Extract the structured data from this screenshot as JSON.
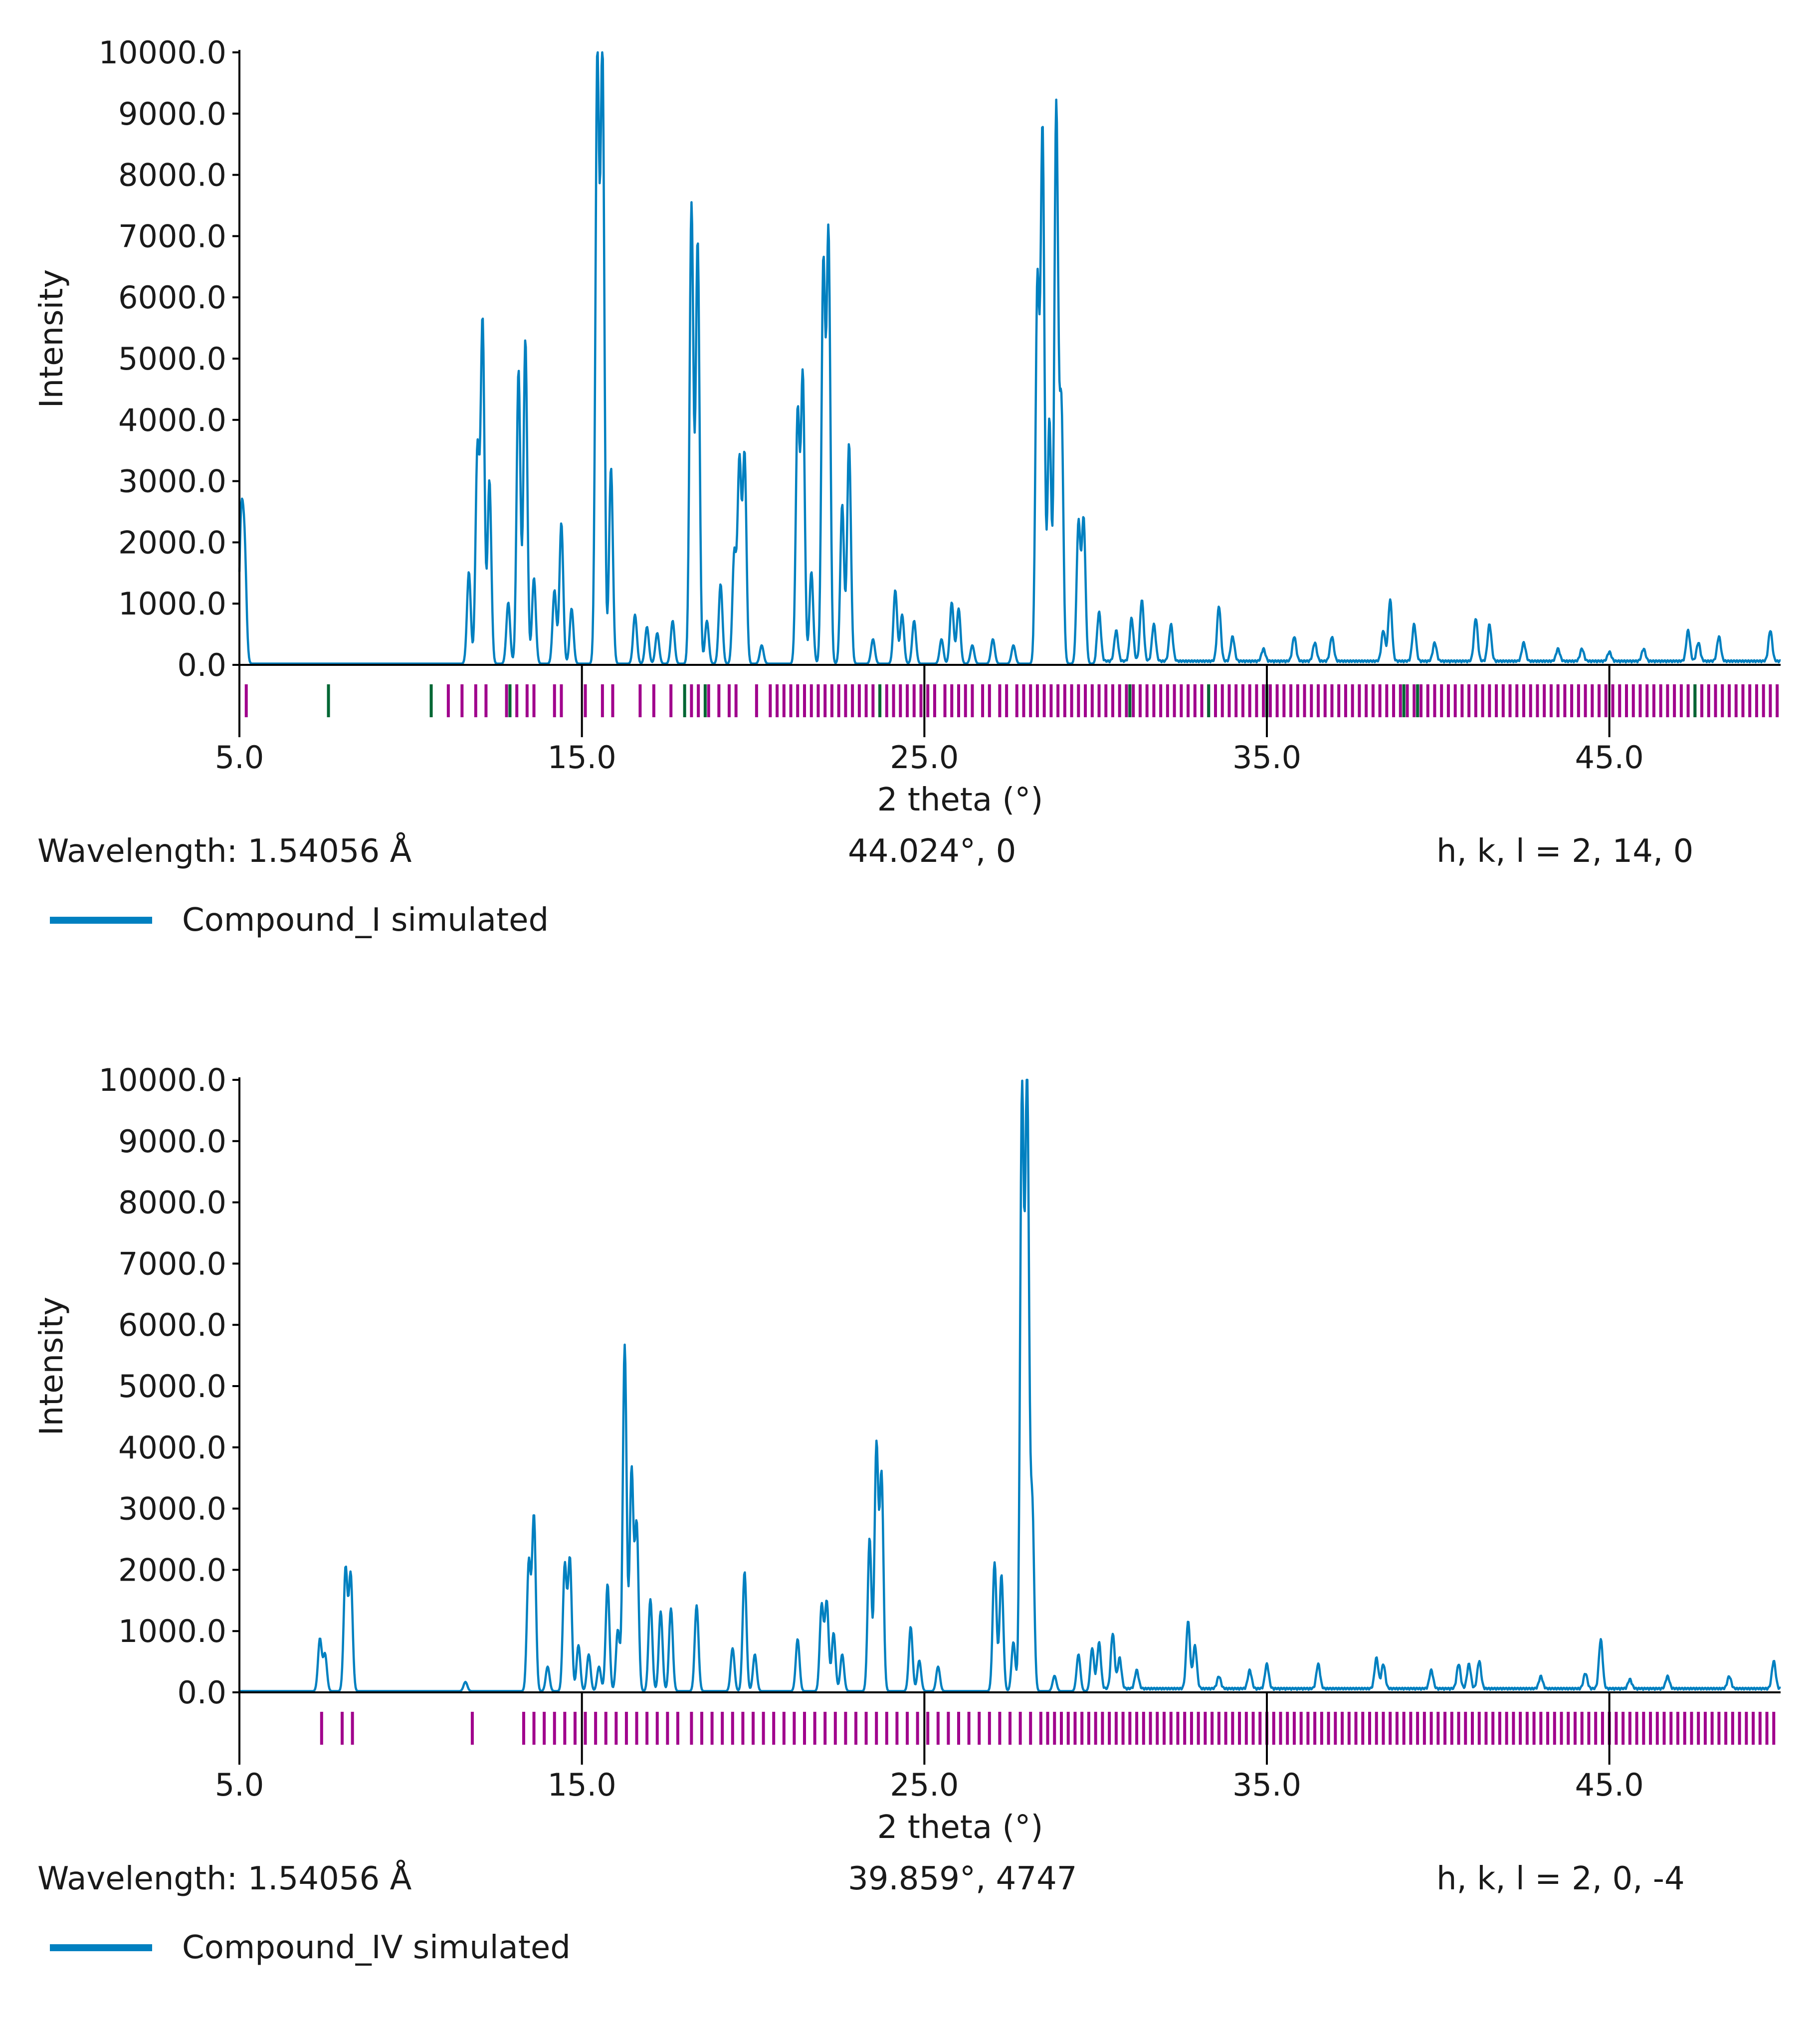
{
  "colors": {
    "pattern": "#0080c0",
    "ticks": "#a0008c",
    "ticks_alt": "#006633",
    "axis": "#000000"
  },
  "chart_data": [
    {
      "type": "line",
      "title": "",
      "xlabel": "2 theta (°)",
      "ylabel": "Intensity",
      "xlim": [
        5.0,
        50.0
      ],
      "ylim": [
        0,
        10000
      ],
      "x_ticks": [
        "5.0",
        "15.0",
        "25.0",
        "35.0",
        "45.0"
      ],
      "x_tick_values": [
        5,
        15,
        25,
        35,
        45
      ],
      "y_ticks": [
        "0.0",
        "1000.0",
        "2000.0",
        "3000.0",
        "4000.0",
        "5000.0",
        "6000.0",
        "7000.0",
        "8000.0",
        "9000.0",
        "10000.0"
      ],
      "wavelength_label": "Wavelength: 1.54056 Å",
      "cursor_readout": "44.024°, 0",
      "hkl_readout": "h, k, l = 2, 14, 0",
      "legend": [
        "Compound_I simulated"
      ],
      "series": [
        {
          "name": "Compound_I simulated",
          "peaks": [
            [
              5.05,
              2200
            ],
            [
              5.15,
              1800
            ],
            [
              11.7,
              1500
            ],
            [
              11.95,
              3500
            ],
            [
              12.1,
              5600
            ],
            [
              12.3,
              3000
            ],
            [
              12.85,
              1000
            ],
            [
              13.15,
              4800
            ],
            [
              13.35,
              5300
            ],
            [
              13.6,
              1400
            ],
            [
              14.2,
              1200
            ],
            [
              14.4,
              2300
            ],
            [
              14.7,
              900
            ],
            [
              15.45,
              9800
            ],
            [
              15.6,
              10000
            ],
            [
              15.85,
              3200
            ],
            [
              16.55,
              800
            ],
            [
              16.9,
              600
            ],
            [
              17.2,
              500
            ],
            [
              17.65,
              700
            ],
            [
              18.2,
              7500
            ],
            [
              18.38,
              6900
            ],
            [
              18.65,
              700
            ],
            [
              19.05,
              1300
            ],
            [
              19.45,
              1800
            ],
            [
              19.6,
              3300
            ],
            [
              19.75,
              3400
            ],
            [
              20.25,
              300
            ],
            [
              21.3,
              4100
            ],
            [
              21.45,
              4700
            ],
            [
              21.7,
              1500
            ],
            [
              22.05,
              6500
            ],
            [
              22.2,
              7000
            ],
            [
              22.6,
              2600
            ],
            [
              22.8,
              3600
            ],
            [
              23.5,
              400
            ],
            [
              24.15,
              1200
            ],
            [
              24.35,
              800
            ],
            [
              24.7,
              700
            ],
            [
              25.5,
              400
            ],
            [
              25.8,
              1000
            ],
            [
              26.0,
              900
            ],
            [
              26.4,
              300
            ],
            [
              27.0,
              400
            ],
            [
              27.6,
              300
            ],
            [
              28.3,
              6200
            ],
            [
              28.45,
              8700
            ],
            [
              28.65,
              4000
            ],
            [
              28.85,
              9100
            ],
            [
              29.0,
              4200
            ],
            [
              29.5,
              2300
            ],
            [
              29.65,
              2350
            ],
            [
              30.1,
              800
            ],
            [
              30.6,
              500
            ],
            [
              31.05,
              700
            ],
            [
              31.35,
              1000
            ],
            [
              31.7,
              600
            ],
            [
              32.2,
              600
            ],
            [
              33.6,
              900
            ],
            [
              34.0,
              400
            ],
            [
              34.9,
              200
            ],
            [
              35.8,
              400
            ],
            [
              36.4,
              300
            ],
            [
              36.9,
              400
            ],
            [
              38.4,
              500
            ],
            [
              38.6,
              1000
            ],
            [
              39.3,
              600
            ],
            [
              39.9,
              300
            ],
            [
              41.1,
              700
            ],
            [
              41.5,
              600
            ],
            [
              42.5,
              300
            ],
            [
              43.5,
              200
            ],
            [
              44.2,
              200
            ],
            [
              45.0,
              150
            ],
            [
              46.0,
              200
            ],
            [
              47.3,
              500
            ],
            [
              47.6,
              300
            ],
            [
              48.2,
              400
            ],
            [
              49.7,
              500
            ]
          ]
        }
      ],
      "reflections": [
        5.2,
        11.1,
        11.5,
        11.9,
        12.2,
        12.8,
        13.1,
        13.4,
        13.6,
        14.2,
        14.4,
        15.1,
        15.6,
        15.9,
        16.7,
        17.1,
        17.6,
        18.2,
        18.4,
        18.7,
        19.0,
        19.3,
        19.5,
        20.1,
        20.5,
        20.7,
        20.9,
        21.1,
        21.3,
        21.5,
        21.7,
        21.9,
        22.1,
        22.3,
        22.5,
        22.7,
        22.9,
        23.1,
        23.3,
        23.5,
        23.7,
        23.9,
        24.1,
        24.3,
        24.5,
        24.7,
        24.9,
        25.1,
        25.3,
        25.6,
        25.8,
        26.0,
        26.2,
        26.4,
        26.7,
        26.9,
        27.2,
        27.4,
        27.7,
        27.9,
        28.1,
        28.3,
        28.5,
        28.7,
        28.9,
        29.1,
        29.3,
        29.5,
        29.7,
        29.9,
        30.1,
        30.3,
        30.5,
        30.7,
        30.9,
        31.1,
        31.3,
        31.5,
        31.7,
        31.9,
        32.1,
        32.3,
        32.5,
        32.7,
        32.9,
        33.1,
        33.3,
        33.5,
        33.7,
        33.9,
        34.1,
        34.3,
        34.5,
        34.7,
        34.9,
        35.1,
        35.3,
        35.5,
        35.7,
        35.9,
        36.1,
        36.3,
        36.5,
        36.7,
        36.9,
        37.1,
        37.3,
        37.5,
        37.7,
        37.9,
        38.1,
        38.3,
        38.5,
        38.7,
        38.9,
        39.1,
        39.3,
        39.5,
        39.7,
        39.9,
        40.1,
        40.3,
        40.5,
        40.7,
        40.9,
        41.1,
        41.3,
        41.5,
        41.7,
        41.9,
        42.1,
        42.3,
        42.5,
        42.7,
        42.9,
        43.1,
        43.3,
        43.5,
        43.7,
        43.9,
        44.1,
        44.3,
        44.5,
        44.7,
        44.9,
        45.1,
        45.3,
        45.5,
        45.7,
        45.9,
        46.1,
        46.3,
        46.5,
        46.7,
        46.9,
        47.1,
        47.3,
        47.5,
        47.7,
        47.9,
        48.1,
        48.3,
        48.5,
        48.7,
        48.9,
        49.1,
        49.3,
        49.5,
        49.7,
        49.9
      ],
      "reflections_alt": [
        7.6,
        10.6,
        12.9,
        18.0,
        18.6,
        23.7,
        31.0,
        33.3,
        35.0,
        39.0,
        39.4,
        47.5
      ]
    },
    {
      "type": "line",
      "title": "",
      "xlabel": "2 theta (°)",
      "ylabel": "Intensity",
      "xlim": [
        5.0,
        50.0
      ],
      "ylim": [
        0,
        10000
      ],
      "x_ticks": [
        "5.0",
        "15.0",
        "25.0",
        "35.0",
        "45.0"
      ],
      "x_tick_values": [
        5,
        15,
        25,
        35,
        45
      ],
      "y_ticks": [
        "0.0",
        "1000.0",
        "2000.0",
        "3000.0",
        "4000.0",
        "5000.0",
        "6000.0",
        "7000.0",
        "8000.0",
        "9000.0",
        "10000.0"
      ],
      "wavelength_label": "Wavelength: 1.54056 Å",
      "cursor_readout": "39.859°, 4747",
      "hkl_readout": "h, k, l = 2, 0, -4",
      "legend": [
        "Compound_IV simulated"
      ],
      "series": [
        {
          "name": "Compound_IV simulated",
          "peaks": [
            [
              7.35,
              850
            ],
            [
              7.5,
              600
            ],
            [
              8.1,
              2000
            ],
            [
              8.25,
              1900
            ],
            [
              11.6,
              150
            ],
            [
              13.45,
              2100
            ],
            [
              13.6,
              2850
            ],
            [
              14.0,
              400
            ],
            [
              14.5,
              2050
            ],
            [
              14.65,
              2150
            ],
            [
              14.9,
              750
            ],
            [
              15.2,
              600
            ],
            [
              15.5,
              400
            ],
            [
              15.75,
              1750
            ],
            [
              16.05,
              1000
            ],
            [
              16.25,
              5650
            ],
            [
              16.45,
              3600
            ],
            [
              16.6,
              2700
            ],
            [
              17.0,
              1500
            ],
            [
              17.3,
              1300
            ],
            [
              17.6,
              1350
            ],
            [
              18.35,
              1400
            ],
            [
              19.4,
              700
            ],
            [
              19.75,
              1950
            ],
            [
              20.05,
              600
            ],
            [
              21.3,
              850
            ],
            [
              22.0,
              1400
            ],
            [
              22.15,
              1450
            ],
            [
              22.35,
              950
            ],
            [
              22.6,
              600
            ],
            [
              23.4,
              2500
            ],
            [
              23.6,
              4000
            ],
            [
              23.75,
              3500
            ],
            [
              24.6,
              1050
            ],
            [
              24.85,
              500
            ],
            [
              25.4,
              400
            ],
            [
              27.05,
              2100
            ],
            [
              27.25,
              1900
            ],
            [
              27.6,
              800
            ],
            [
              27.85,
              9700
            ],
            [
              28.0,
              10000
            ],
            [
              28.15,
              3000
            ],
            [
              28.8,
              250
            ],
            [
              29.5,
              600
            ],
            [
              29.9,
              700
            ],
            [
              30.1,
              750
            ],
            [
              30.5,
              900
            ],
            [
              30.7,
              500
            ],
            [
              31.2,
              300
            ],
            [
              32.7,
              1100
            ],
            [
              32.9,
              700
            ],
            [
              33.6,
              200
            ],
            [
              34.5,
              300
            ],
            [
              35.0,
              400
            ],
            [
              36.5,
              400
            ],
            [
              38.2,
              500
            ],
            [
              38.4,
              400
            ],
            [
              39.8,
              300
            ],
            [
              40.6,
              400
            ],
            [
              40.9,
              400
            ],
            [
              41.2,
              450
            ],
            [
              43.0,
              200
            ],
            [
              44.3,
              250
            ],
            [
              44.75,
              800
            ],
            [
              45.6,
              150
            ],
            [
              46.7,
              200
            ],
            [
              48.5,
              200
            ],
            [
              49.8,
              450
            ]
          ]
        }
      ],
      "reflections": [
        7.4,
        8.0,
        8.3,
        11.8,
        13.3,
        13.6,
        13.9,
        14.2,
        14.5,
        14.8,
        15.1,
        15.4,
        15.7,
        16.0,
        16.3,
        16.6,
        16.9,
        17.2,
        17.5,
        17.8,
        18.2,
        18.5,
        18.8,
        19.1,
        19.4,
        19.7,
        20.0,
        20.3,
        20.6,
        20.9,
        21.2,
        21.5,
        21.8,
        22.1,
        22.4,
        22.7,
        23.0,
        23.3,
        23.6,
        23.9,
        24.2,
        24.5,
        24.8,
        25.1,
        25.4,
        25.7,
        26.0,
        26.3,
        26.6,
        26.9,
        27.2,
        27.5,
        27.8,
        28.1,
        28.4,
        28.6,
        28.8,
        29.0,
        29.2,
        29.4,
        29.6,
        29.8,
        30.0,
        30.2,
        30.4,
        30.6,
        30.8,
        31.0,
        31.2,
        31.4,
        31.6,
        31.8,
        32.0,
        32.2,
        32.4,
        32.6,
        32.8,
        33.0,
        33.2,
        33.4,
        33.6,
        33.8,
        34.0,
        34.2,
        34.4,
        34.6,
        34.8,
        35.0,
        35.2,
        35.4,
        35.6,
        35.8,
        36.0,
        36.2,
        36.4,
        36.6,
        36.8,
        37.0,
        37.2,
        37.4,
        37.6,
        37.8,
        38.0,
        38.2,
        38.4,
        38.6,
        38.8,
        39.0,
        39.2,
        39.4,
        39.6,
        39.8,
        40.0,
        40.2,
        40.4,
        40.6,
        40.8,
        41.0,
        41.2,
        41.4,
        41.6,
        41.8,
        42.0,
        42.2,
        42.4,
        42.6,
        42.8,
        43.0,
        43.2,
        43.4,
        43.6,
        43.8,
        44.0,
        44.2,
        44.4,
        44.6,
        44.8,
        45.0,
        45.2,
        45.4,
        45.6,
        45.8,
        46.0,
        46.2,
        46.4,
        46.6,
        46.8,
        47.0,
        47.2,
        47.4,
        47.6,
        47.8,
        48.0,
        48.2,
        48.4,
        48.6,
        48.8,
        49.0,
        49.2,
        49.4,
        49.6,
        49.8
      ],
      "reflections_alt": []
    }
  ]
}
